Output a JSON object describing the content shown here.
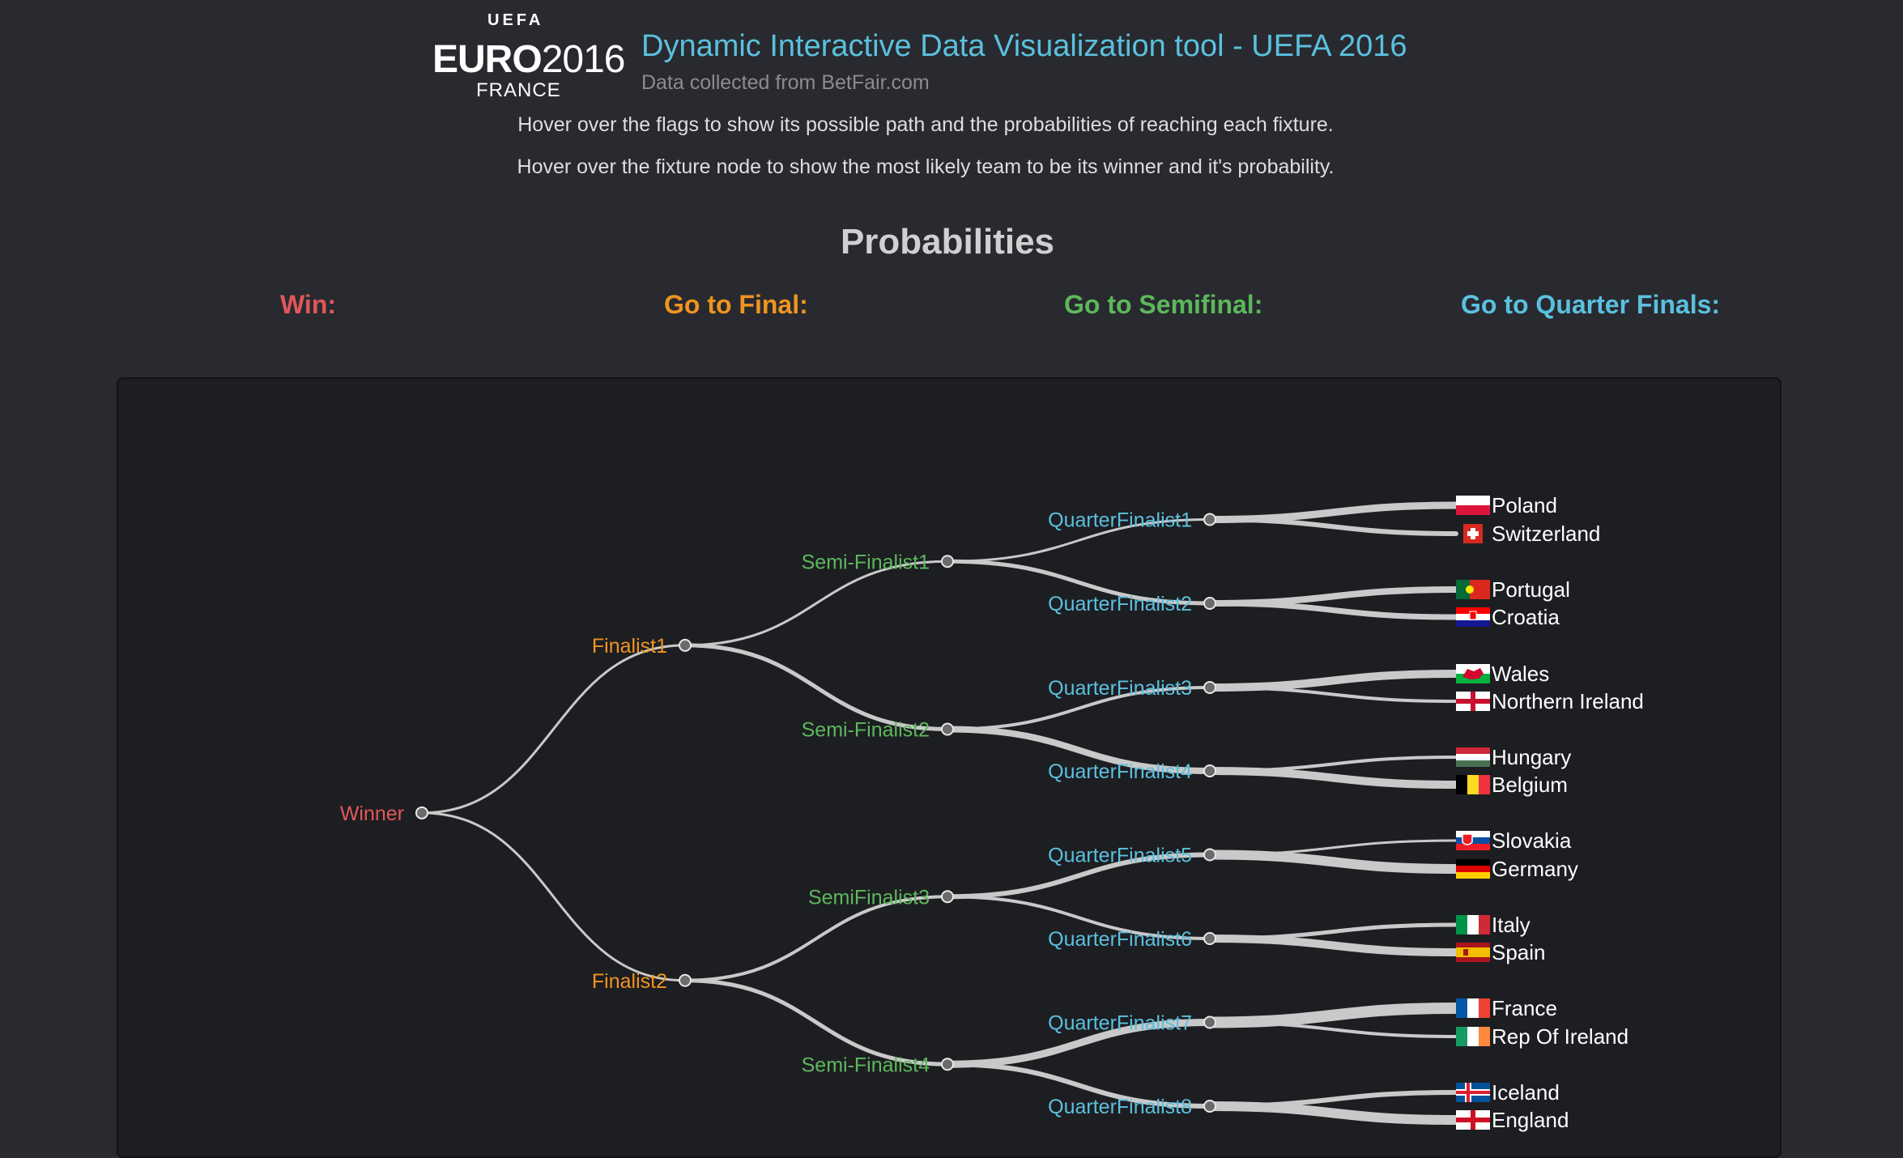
{
  "logo": {
    "arc": "UEFA",
    "euro": "EURO",
    "year": "2016",
    "country": "FRANCE"
  },
  "header": {
    "title": "Dynamic Interactive Data Visualization tool - UEFA 2016",
    "subtitle": "Data collected from BetFair.com",
    "instruction_flags": "Hover over the flags to show its possible path and the probabilities of reaching each fixture.",
    "instruction_nodes": "Hover over the fixture node to show the most likely team to be its winner and it's probability."
  },
  "probabilities": {
    "title": "Probabilities",
    "win_label": "Win:",
    "final_label": "Go to Final:",
    "semi_label": "Go to Semifinal:",
    "qf_label": "Go to Quarter Finals:"
  },
  "colors": {
    "winner": "#e15759",
    "finalist": "#f0941f",
    "semifinalist": "#5cb85c",
    "quarterfinalist": "#5bc0de",
    "link": "#c9c9c9",
    "node": "#6b6b6b"
  },
  "tree": {
    "winner": "Winner",
    "finalists": [
      "Finalist1",
      "Finalist2"
    ],
    "semifinalists": [
      "Semi-Finalist1",
      "Semi-Finalist2",
      "SemiFinalist3",
      "Semi-Finalist4"
    ],
    "quarterfinalists": [
      "QuarterFinalist1",
      "QuarterFinalist2",
      "QuarterFinalist3",
      "QuarterFinalist4",
      "QuarterFinalist5",
      "QuarterFinalist6",
      "QuarterFinalist7",
      "QuarterFinalist8"
    ],
    "teams": [
      {
        "name": "Poland",
        "flag": "poland-flag-icon"
      },
      {
        "name": "Switzerland",
        "flag": "switzerland-flag-icon"
      },
      {
        "name": "Portugal",
        "flag": "portugal-flag-icon"
      },
      {
        "name": "Croatia",
        "flag": "croatia-flag-icon"
      },
      {
        "name": "Wales",
        "flag": "wales-flag-icon"
      },
      {
        "name": "Northern Ireland",
        "flag": "northern-ireland-flag-icon"
      },
      {
        "name": "Hungary",
        "flag": "hungary-flag-icon"
      },
      {
        "name": "Belgium",
        "flag": "belgium-flag-icon"
      },
      {
        "name": "Slovakia",
        "flag": "slovakia-flag-icon"
      },
      {
        "name": "Germany",
        "flag": "germany-flag-icon"
      },
      {
        "name": "Italy",
        "flag": "italy-flag-icon"
      },
      {
        "name": "Spain",
        "flag": "spain-flag-icon"
      },
      {
        "name": "France",
        "flag": "france-flag-icon"
      },
      {
        "name": "Rep Of Ireland",
        "flag": "ireland-flag-icon"
      },
      {
        "name": "Iceland",
        "flag": "iceland-flag-icon"
      },
      {
        "name": "England",
        "flag": "england-flag-icon"
      }
    ]
  }
}
